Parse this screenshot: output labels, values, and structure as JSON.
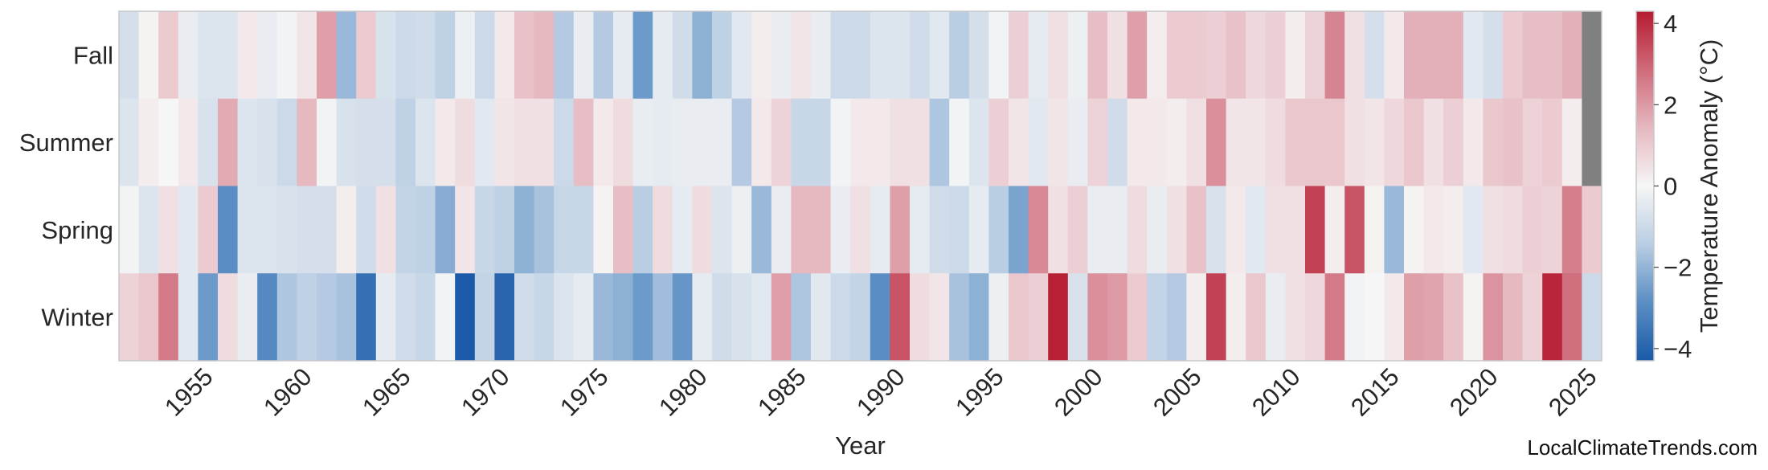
{
  "chart_data": {
    "type": "heatmap",
    "title": "",
    "xlabel": "Year",
    "ylabel": "",
    "colorbar_label": "Temperature Anomaly (°C)",
    "colorbar_ticks": [
      4,
      2,
      0,
      -2,
      -4
    ],
    "colorbar_tick_labels": [
      "4",
      "2",
      "0",
      "−2",
      "−4"
    ],
    "color_range": [
      -4.3,
      4.3
    ],
    "colormap": [
      "#1a5aa8",
      "#5b8ec4",
      "#b9cde3",
      "#f6f6f6",
      "#e6b8c0",
      "#cf6b7a",
      "#b61a30"
    ],
    "missing_color": "#808080",
    "x_start": 1951,
    "x_end": 2025,
    "x_ticks": [
      1955,
      1960,
      1965,
      1970,
      1975,
      1980,
      1985,
      1990,
      1995,
      2000,
      2005,
      2010,
      2015,
      2020,
      2025
    ],
    "y_categories": [
      "Fall",
      "Summer",
      "Spring",
      "Winter"
    ],
    "values": {
      "Fall": [
        -0.8,
        0.1,
        1.0,
        -0.3,
        -0.6,
        -0.6,
        0.3,
        -0.3,
        -0.1,
        0.4,
        1.9,
        -1.9,
        1.0,
        -0.7,
        -1.0,
        -0.9,
        -1.3,
        -0.2,
        -1.0,
        0.3,
        1.2,
        1.4,
        -1.5,
        -0.3,
        -1.5,
        -0.4,
        -2.6,
        -0.4,
        -0.9,
        -2.1,
        -1.3,
        -0.5,
        0.2,
        -0.3,
        0.4,
        -0.3,
        -1.0,
        -1.0,
        -0.6,
        -0.6,
        -0.9,
        -0.5,
        -1.4,
        -0.8,
        -0.1,
        0.9,
        -0.4,
        0.5,
        -0.2,
        1.3,
        0.5,
        1.9,
        0.2,
        1.0,
        1.0,
        0.9,
        1.2,
        0.7,
        0.9,
        0.2,
        0.8,
        2.4,
        0.5,
        -0.8,
        0.3,
        1.6,
        1.6,
        1.6,
        -0.5,
        -0.8,
        1.0,
        1.3,
        1.3,
        1.6,
        null
      ],
      "Summer": [
        -0.6,
        0.2,
        0.0,
        0.3,
        -0.7,
        1.7,
        -0.6,
        -0.7,
        -1.0,
        1.4,
        -0.1,
        -0.7,
        -0.8,
        -0.8,
        -1.3,
        -0.6,
        0.3,
        0.6,
        -0.5,
        0.4,
        0.5,
        0.5,
        -1.0,
        1.3,
        0.3,
        0.6,
        -0.3,
        -0.4,
        -0.3,
        -0.3,
        -0.3,
        -1.5,
        0.3,
        0.8,
        -1.1,
        -1.1,
        -0.1,
        0.3,
        0.3,
        0.5,
        0.5,
        -1.6,
        -0.1,
        -0.6,
        0.9,
        0.4,
        -0.5,
        0.4,
        -0.3,
        0.8,
        -0.9,
        0.3,
        0.3,
        0.2,
        0.5,
        2.2,
        0.4,
        0.4,
        0.6,
        1.1,
        1.1,
        1.1,
        0.5,
        0.4,
        0.7,
        1.1,
        0.5,
        0.9,
        0.3,
        1.1,
        1.2,
        0.8,
        1.0,
        0.2,
        null
      ],
      "Spring": [
        -0.1,
        -0.6,
        0.5,
        -0.5,
        1.0,
        -2.9,
        -0.6,
        -0.6,
        -0.7,
        -0.8,
        -0.8,
        0.2,
        -0.9,
        0.5,
        -1.2,
        -1.3,
        -2.2,
        0.4,
        -1.1,
        -1.3,
        -2.1,
        -1.7,
        -1.1,
        -1.1,
        0.1,
        1.3,
        -1.4,
        0.6,
        -0.4,
        0.6,
        -0.6,
        -0.2,
        -1.9,
        -0.3,
        1.4,
        1.4,
        -0.3,
        0.5,
        -0.4,
        1.9,
        -0.4,
        -0.9,
        -1.0,
        -0.4,
        -1.4,
        -2.4,
        2.3,
        0.5,
        0.9,
        -0.3,
        -0.3,
        0.6,
        -0.3,
        0.5,
        1.2,
        -0.7,
        0.3,
        -0.5,
        0.5,
        0.5,
        3.6,
        0.2,
        3.3,
        0.1,
        -1.9,
        0.1,
        0.3,
        0.2,
        -0.5,
        0.5,
        0.6,
        0.9,
        0.8,
        2.5,
        1.0
      ],
      "Winter": [
        0.8,
        1.1,
        2.6,
        -0.5,
        -2.6,
        0.6,
        -0.3,
        -3.0,
        -1.6,
        -1.3,
        -1.5,
        -1.7,
        -3.7,
        -0.4,
        -0.9,
        -1.1,
        -0.1,
        -4.3,
        -1.2,
        -4.0,
        -0.9,
        -1.1,
        -0.6,
        -0.4,
        -1.9,
        -2.1,
        -2.6,
        -1.8,
        -2.7,
        -0.4,
        -0.9,
        -0.7,
        -0.5,
        1.9,
        -1.6,
        -0.5,
        -1.0,
        -1.2,
        -2.9,
        3.3,
        0.6,
        0.4,
        -1.7,
        -2.1,
        -0.2,
        1.1,
        0.9,
        4.2,
        -0.7,
        2.2,
        2.0,
        1.0,
        -1.2,
        -1.5,
        0.2,
        3.6,
        0.2,
        1.1,
        -0.3,
        0.5,
        0.7,
        2.6,
        -0.1,
        0.0,
        0.3,
        1.9,
        1.8,
        1.2,
        0.1,
        2.1,
        1.4,
        0.8,
        4.1,
        2.8,
        -1.0
      ]
    }
  },
  "attribution": "LocalClimateTrends.com"
}
